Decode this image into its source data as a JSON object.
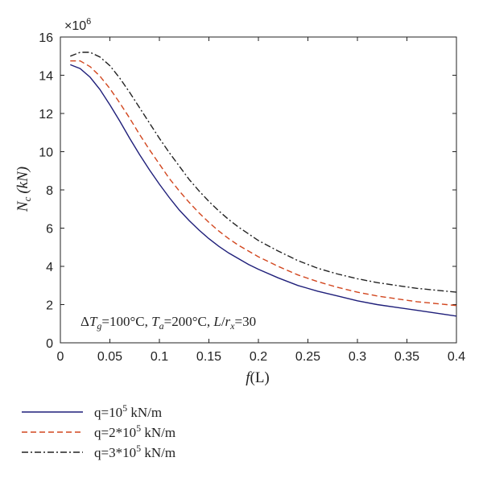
{
  "chart_data": {
    "type": "line",
    "title": "",
    "xlabel": {
      "var": "f",
      "arg": "(L)"
    },
    "ylabel": {
      "var": "N",
      "sub": "c",
      "unit": "(kN)"
    },
    "xlim": [
      0,
      0.4
    ],
    "ylim": [
      0,
      16
    ],
    "xticks": [
      0,
      0.05,
      0.1,
      0.15,
      0.2,
      0.25,
      0.3,
      0.35,
      0.4
    ],
    "xtick_labels": [
      "0",
      "0.05",
      "0.1",
      "0.15",
      "0.2",
      "0.25",
      "0.3",
      "0.35",
      "0.4"
    ],
    "yticks": [
      0,
      2,
      4,
      6,
      8,
      10,
      12,
      14,
      16
    ],
    "ytick_labels": [
      "0",
      "2",
      "4",
      "6",
      "8",
      "10",
      "12",
      "14",
      "16"
    ],
    "y_multiplier": {
      "base": "×10",
      "exp": "6"
    },
    "grid": false,
    "legend_position": "below",
    "annotation": {
      "p1": "Δ",
      "v1": "T",
      "s1": "g",
      "t1": "=100°C, ",
      "v2": "T",
      "s2": "a",
      "t2": "=200°C, ",
      "v3": "L",
      "t3": "/",
      "v4": "r",
      "s4": "x",
      "t4": "=30"
    },
    "x": [
      0.01,
      0.02,
      0.03,
      0.04,
      0.05,
      0.06,
      0.07,
      0.08,
      0.09,
      0.1,
      0.11,
      0.12,
      0.13,
      0.14,
      0.15,
      0.16,
      0.17,
      0.18,
      0.19,
      0.2,
      0.22,
      0.24,
      0.26,
      0.28,
      0.3,
      0.32,
      0.34,
      0.36,
      0.38,
      0.4
    ],
    "series": [
      {
        "legend": {
          "pre": "q=10",
          "sup": "5",
          "post": " kN/m"
        },
        "color": "#1f1f7a",
        "dash": "solid",
        "values": [
          14.55,
          14.35,
          13.9,
          13.25,
          12.45,
          11.6,
          10.7,
          9.85,
          9.05,
          8.3,
          7.6,
          6.95,
          6.4,
          5.9,
          5.45,
          5.05,
          4.7,
          4.4,
          4.1,
          3.85,
          3.4,
          3.0,
          2.7,
          2.45,
          2.2,
          2.0,
          1.85,
          1.7,
          1.55,
          1.4
        ]
      },
      {
        "legend": {
          "pre": "q=2*10",
          "sup": "5",
          "post": " kN/m"
        },
        "color": "#d2461e",
        "dash": "dashed",
        "values": [
          14.75,
          14.75,
          14.45,
          13.95,
          13.3,
          12.55,
          11.75,
          10.9,
          10.1,
          9.35,
          8.6,
          7.95,
          7.35,
          6.8,
          6.3,
          5.85,
          5.45,
          5.1,
          4.8,
          4.5,
          4.0,
          3.55,
          3.2,
          2.9,
          2.65,
          2.45,
          2.3,
          2.15,
          2.05,
          1.95
        ]
      },
      {
        "legend": {
          "pre": "q=3*10",
          "sup": "5",
          "post": " kN/m"
        },
        "color": "#222222",
        "dash": "dashdot",
        "values": [
          15.0,
          15.2,
          15.2,
          14.95,
          14.5,
          13.85,
          13.1,
          12.3,
          11.5,
          10.7,
          9.95,
          9.25,
          8.55,
          7.95,
          7.4,
          6.9,
          6.45,
          6.05,
          5.7,
          5.35,
          4.8,
          4.3,
          3.9,
          3.6,
          3.35,
          3.15,
          3.0,
          2.85,
          2.75,
          2.65
        ]
      }
    ]
  }
}
